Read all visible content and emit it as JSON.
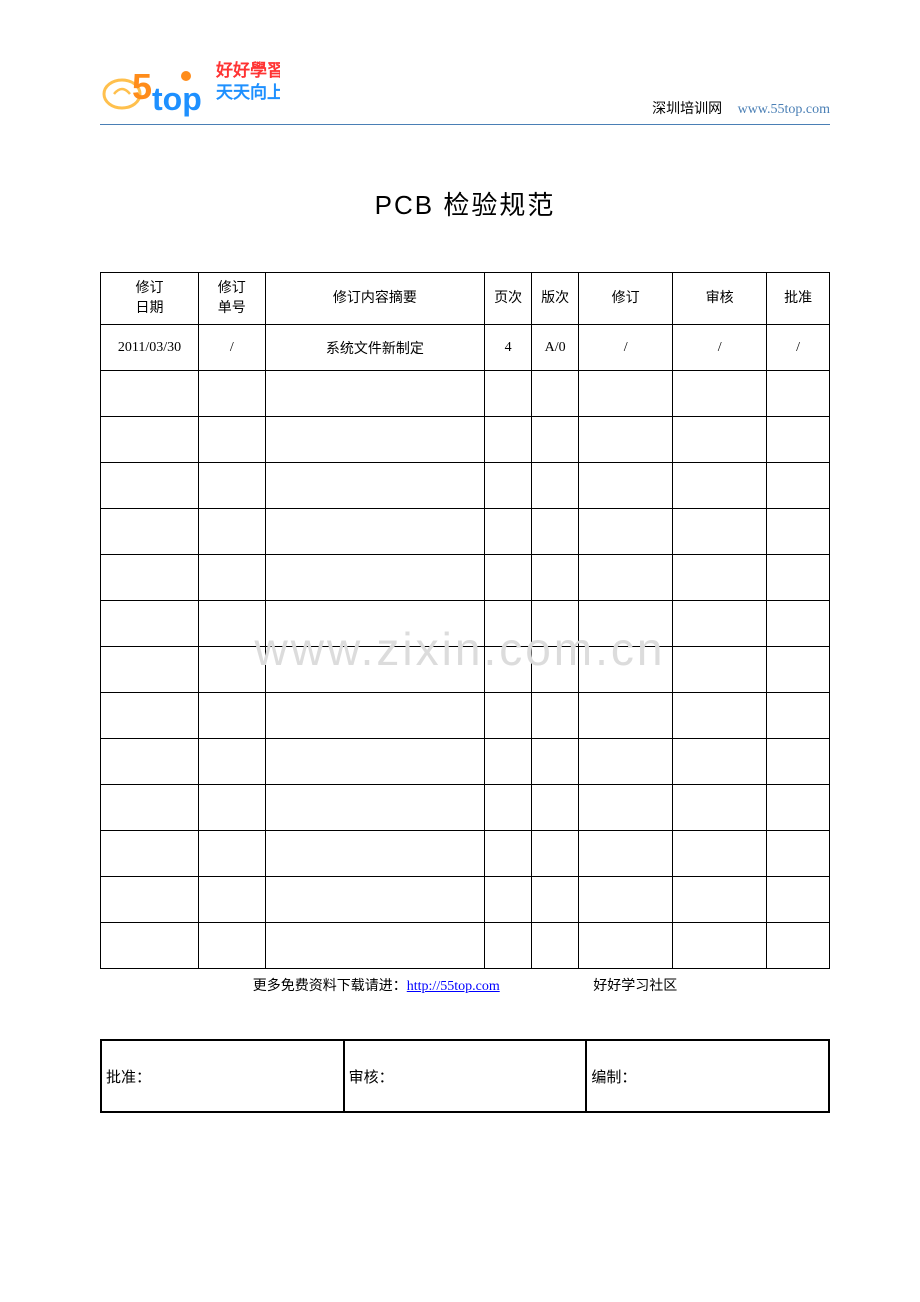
{
  "header": {
    "logo_text_top": "好好學習",
    "logo_text_bottom": "天天向上",
    "right_label": "深圳培训网",
    "right_url": "www.55top.com"
  },
  "title": "PCB 检验规范",
  "table": {
    "headers": {
      "date": "修订\n日期",
      "order": "修订\n单号",
      "summary": "修订内容摘要",
      "page": "页次",
      "version": "版次",
      "revise": "修订",
      "review": "审核",
      "approve": "批准"
    },
    "rows": [
      {
        "date": "2011/03/30",
        "order": "/",
        "summary": "系统文件新制定",
        "page": "4",
        "version": "A/0",
        "revise": "/",
        "review": "/",
        "approve": "/"
      },
      {
        "date": "",
        "order": "",
        "summary": "",
        "page": "",
        "version": "",
        "revise": "",
        "review": "",
        "approve": ""
      },
      {
        "date": "",
        "order": "",
        "summary": "",
        "page": "",
        "version": "",
        "revise": "",
        "review": "",
        "approve": ""
      },
      {
        "date": "",
        "order": "",
        "summary": "",
        "page": "",
        "version": "",
        "revise": "",
        "review": "",
        "approve": ""
      },
      {
        "date": "",
        "order": "",
        "summary": "",
        "page": "",
        "version": "",
        "revise": "",
        "review": "",
        "approve": ""
      },
      {
        "date": "",
        "order": "",
        "summary": "",
        "page": "",
        "version": "",
        "revise": "",
        "review": "",
        "approve": ""
      },
      {
        "date": "",
        "order": "",
        "summary": "",
        "page": "",
        "version": "",
        "revise": "",
        "review": "",
        "approve": ""
      },
      {
        "date": "",
        "order": "",
        "summary": "",
        "page": "",
        "version": "",
        "revise": "",
        "review": "",
        "approve": ""
      },
      {
        "date": "",
        "order": "",
        "summary": "",
        "page": "",
        "version": "",
        "revise": "",
        "review": "",
        "approve": ""
      },
      {
        "date": "",
        "order": "",
        "summary": "",
        "page": "",
        "version": "",
        "revise": "",
        "review": "",
        "approve": ""
      },
      {
        "date": "",
        "order": "",
        "summary": "",
        "page": "",
        "version": "",
        "revise": "",
        "review": "",
        "approve": ""
      },
      {
        "date": "",
        "order": "",
        "summary": "",
        "page": "",
        "version": "",
        "revise": "",
        "review": "",
        "approve": ""
      },
      {
        "date": "",
        "order": "",
        "summary": "",
        "page": "",
        "version": "",
        "revise": "",
        "review": "",
        "approve": ""
      },
      {
        "date": "",
        "order": "",
        "summary": "",
        "page": "",
        "version": "",
        "revise": "",
        "review": "",
        "approve": ""
      }
    ]
  },
  "footer": {
    "prefix": "更多免费资料下载请进：",
    "link": "http://55top.com",
    "community": "好好学习社区"
  },
  "signoff": {
    "approve": "批准：",
    "review": "审核：",
    "prepare": "编制："
  },
  "watermark": "www.zixin.com.cn",
  "colors": {
    "header_border": "#4a7fb5",
    "link_blue": "#0000ff",
    "logo_orange": "#ff8c1a",
    "logo_blue": "#1e90ff",
    "logo_yellow": "#ffc04d",
    "logo_red": "#ff3333",
    "watermark_gray": "#dcdcdc"
  }
}
